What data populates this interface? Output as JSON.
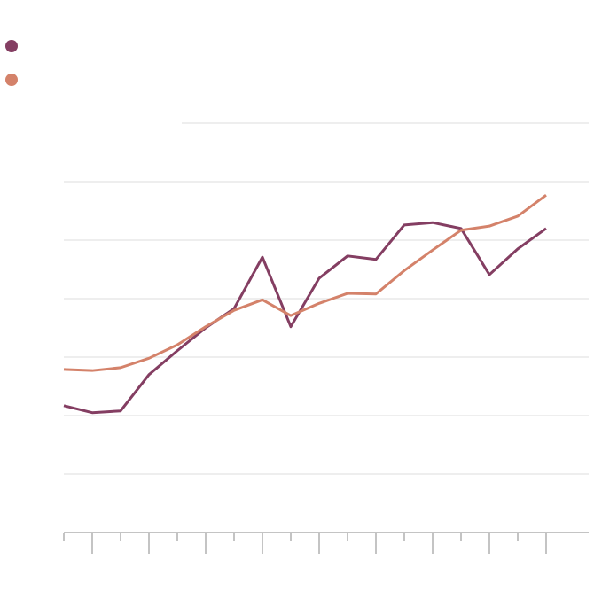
{
  "chart_data": {
    "type": "line",
    "x": [
      0,
      1,
      2,
      3,
      4,
      5,
      6,
      7,
      8,
      9,
      10,
      11,
      12,
      13,
      14,
      15,
      16,
      17
    ],
    "series": [
      {
        "color": "#843e62",
        "values": [
          2.17,
          2.05,
          2.08,
          2.7,
          3.11,
          3.5,
          3.83,
          4.71,
          3.52,
          4.35,
          4.73,
          4.67,
          5.26,
          5.3,
          5.2,
          4.41,
          4.85,
          5.2
        ]
      },
      {
        "color": "#d4826a",
        "values": [
          2.79,
          2.77,
          2.82,
          2.98,
          3.21,
          3.52,
          3.8,
          3.98,
          3.71,
          3.92,
          4.09,
          4.08,
          4.48,
          4.83,
          5.17,
          5.24,
          5.41,
          5.77
        ]
      }
    ],
    "xlim": [
      0,
      18.5
    ],
    "xticks": [
      0,
      1,
      2,
      3,
      4,
      5,
      6,
      7,
      8,
      9,
      10,
      11,
      12,
      13,
      14,
      15,
      16,
      17
    ],
    "ylim": [
      0,
      7
    ],
    "yticks": [
      1,
      2,
      3,
      4,
      5,
      6,
      7
    ],
    "grid": true
  }
}
